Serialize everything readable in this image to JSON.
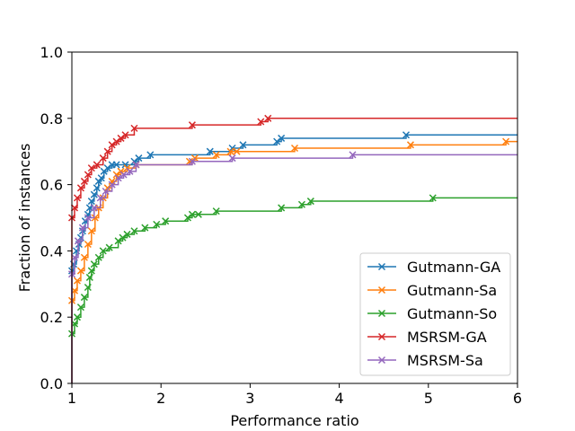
{
  "chart_data": {
    "type": "line",
    "title": "",
    "xlabel": "Performance ratio",
    "ylabel": "Fraction of instances",
    "xlim": [
      1,
      6
    ],
    "ylim": [
      0,
      1
    ],
    "xticks": [
      1,
      2,
      3,
      4,
      5,
      6
    ],
    "xtick_labels": [
      "1",
      "2",
      "3",
      "4",
      "5",
      "6"
    ],
    "yticks": [
      0,
      0.2,
      0.4,
      0.6,
      0.8,
      1.0
    ],
    "ytick_labels": [
      "0.0",
      "0.2",
      "0.4",
      "0.6",
      "0.8",
      "1.0"
    ],
    "grid": false,
    "legend_position": "lower right",
    "step": true,
    "series": [
      {
        "name": "Gutmann-GA",
        "color": "#1f77b4",
        "marker": "x",
        "x": [
          1.0,
          1.0,
          1.02,
          1.05,
          1.08,
          1.1,
          1.12,
          1.15,
          1.18,
          1.2,
          1.22,
          1.25,
          1.28,
          1.3,
          1.33,
          1.36,
          1.4,
          1.45,
          1.5,
          1.6,
          1.7,
          1.75,
          1.88,
          2.55,
          2.8,
          2.92,
          3.3,
          3.35,
          4.75,
          6.0
        ],
        "y": [
          0.0,
          0.34,
          0.36,
          0.4,
          0.42,
          0.44,
          0.46,
          0.49,
          0.51,
          0.53,
          0.55,
          0.57,
          0.59,
          0.61,
          0.62,
          0.64,
          0.65,
          0.66,
          0.66,
          0.66,
          0.67,
          0.68,
          0.69,
          0.7,
          0.71,
          0.72,
          0.73,
          0.74,
          0.75,
          0.75
        ]
      },
      {
        "name": "Gutmann-Sa",
        "color": "#ff7f0e",
        "marker": "x",
        "x": [
          1.0,
          1.0,
          1.03,
          1.06,
          1.1,
          1.14,
          1.18,
          1.22,
          1.26,
          1.3,
          1.35,
          1.4,
          1.45,
          1.5,
          1.55,
          1.62,
          1.72,
          2.32,
          2.38,
          2.62,
          2.78,
          2.85,
          3.5,
          4.8,
          5.87,
          6.0
        ],
        "y": [
          0.0,
          0.25,
          0.28,
          0.31,
          0.34,
          0.38,
          0.42,
          0.46,
          0.5,
          0.53,
          0.56,
          0.59,
          0.61,
          0.63,
          0.64,
          0.65,
          0.66,
          0.67,
          0.68,
          0.69,
          0.7,
          0.7,
          0.71,
          0.72,
          0.73,
          0.73
        ]
      },
      {
        "name": "Gutmann-So",
        "color": "#2ca02c",
        "marker": "x",
        "x": [
          1.0,
          1.0,
          1.03,
          1.06,
          1.1,
          1.14,
          1.18,
          1.2,
          1.22,
          1.25,
          1.3,
          1.35,
          1.42,
          1.52,
          1.57,
          1.62,
          1.7,
          1.82,
          1.95,
          2.05,
          2.3,
          2.35,
          2.42,
          2.62,
          3.35,
          3.58,
          3.68,
          5.05,
          6.0
        ],
        "y": [
          0.0,
          0.15,
          0.18,
          0.2,
          0.23,
          0.26,
          0.29,
          0.32,
          0.34,
          0.36,
          0.38,
          0.4,
          0.41,
          0.43,
          0.44,
          0.45,
          0.46,
          0.47,
          0.48,
          0.49,
          0.5,
          0.51,
          0.51,
          0.52,
          0.53,
          0.54,
          0.55,
          0.56,
          0.56
        ]
      },
      {
        "name": "MSRSM-GA",
        "color": "#d62728",
        "marker": "x",
        "x": [
          1.0,
          1.0,
          1.03,
          1.06,
          1.1,
          1.14,
          1.18,
          1.22,
          1.28,
          1.35,
          1.4,
          1.45,
          1.5,
          1.55,
          1.6,
          1.7,
          2.35,
          3.12,
          3.2,
          6.0
        ],
        "y": [
          0.0,
          0.5,
          0.53,
          0.56,
          0.59,
          0.61,
          0.63,
          0.65,
          0.66,
          0.68,
          0.7,
          0.72,
          0.73,
          0.74,
          0.75,
          0.77,
          0.78,
          0.79,
          0.8,
          0.8
        ]
      },
      {
        "name": "MSRSM-Sa",
        "color": "#9467bd",
        "marker": "x",
        "x": [
          1.0,
          1.0,
          1.03,
          1.07,
          1.12,
          1.18,
          1.25,
          1.32,
          1.38,
          1.45,
          1.52,
          1.58,
          1.65,
          1.72,
          2.35,
          2.8,
          4.15,
          6.0
        ],
        "y": [
          0.0,
          0.33,
          0.38,
          0.43,
          0.47,
          0.5,
          0.53,
          0.56,
          0.58,
          0.6,
          0.62,
          0.63,
          0.64,
          0.66,
          0.67,
          0.68,
          0.69,
          0.69
        ]
      }
    ]
  }
}
